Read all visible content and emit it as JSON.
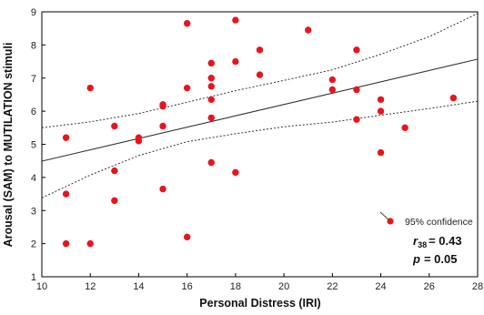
{
  "chart_data": {
    "type": "scatter",
    "title": "",
    "xlabel": "Personal Distress (IRI)",
    "ylabel": "Arousal (SAM) to MUTILATION stimuli",
    "xlim": [
      10,
      28
    ],
    "ylim": [
      1,
      9
    ],
    "xticks": [
      "10",
      "12",
      "14",
      "16",
      "18",
      "20",
      "22",
      "24",
      "26",
      "28"
    ],
    "yticks": [
      "1",
      "2",
      "3",
      "4",
      "5",
      "6",
      "7",
      "8",
      "9"
    ],
    "grid": false,
    "legend": {
      "label": "95% confidence",
      "placement": "bottom-right"
    },
    "stats": {
      "r_symbol": "r",
      "r_subscript": "38",
      "r_value": "= 0.43",
      "p_symbol": "p",
      "p_value": "=  0.05"
    },
    "colors": {
      "points": "#e8141e",
      "fit_line": "#333333",
      "confidence_band": "#333333"
    },
    "regression": {
      "intercept": 2.78,
      "slope": 0.1711
    },
    "confidence_band": {
      "upper": [
        [
          10,
          5.5
        ],
        [
          12,
          5.68
        ],
        [
          14,
          5.93
        ],
        [
          16,
          6.27
        ],
        [
          18,
          6.62
        ],
        [
          20,
          6.93
        ],
        [
          22,
          7.25
        ],
        [
          24,
          7.72
        ],
        [
          26,
          8.25
        ],
        [
          28,
          8.95
        ]
      ],
      "lower": [
        [
          10,
          3.38
        ],
        [
          12,
          4.07
        ],
        [
          14,
          4.66
        ],
        [
          16,
          5.08
        ],
        [
          18,
          5.32
        ],
        [
          20,
          5.53
        ],
        [
          22,
          5.67
        ],
        [
          24,
          5.88
        ],
        [
          26,
          6.08
        ],
        [
          28,
          6.3
        ]
      ]
    },
    "points": [
      {
        "x": 11,
        "y": 5.2
      },
      {
        "x": 11,
        "y": 3.5
      },
      {
        "x": 11,
        "y": 2.0
      },
      {
        "x": 12,
        "y": 6.7
      },
      {
        "x": 12,
        "y": 2.0
      },
      {
        "x": 13,
        "y": 5.55
      },
      {
        "x": 13,
        "y": 4.2
      },
      {
        "x": 13,
        "y": 3.3
      },
      {
        "x": 14,
        "y": 5.2
      },
      {
        "x": 14,
        "y": 5.1
      },
      {
        "x": 15,
        "y": 6.2
      },
      {
        "x": 15,
        "y": 6.15
      },
      {
        "x": 15,
        "y": 5.55
      },
      {
        "x": 15,
        "y": 3.65
      },
      {
        "x": 16,
        "y": 8.65
      },
      {
        "x": 16,
        "y": 6.7
      },
      {
        "x": 16,
        "y": 2.2
      },
      {
        "x": 17,
        "y": 7.45
      },
      {
        "x": 17,
        "y": 7.0
      },
      {
        "x": 17,
        "y": 6.75
      },
      {
        "x": 17,
        "y": 6.35
      },
      {
        "x": 17,
        "y": 5.8
      },
      {
        "x": 17,
        "y": 4.45
      },
      {
        "x": 18,
        "y": 8.75
      },
      {
        "x": 18,
        "y": 7.5
      },
      {
        "x": 18,
        "y": 4.15
      },
      {
        "x": 19,
        "y": 7.85
      },
      {
        "x": 19,
        "y": 7.1
      },
      {
        "x": 21,
        "y": 8.45
      },
      {
        "x": 22,
        "y": 6.95
      },
      {
        "x": 22,
        "y": 6.65
      },
      {
        "x": 23,
        "y": 7.85
      },
      {
        "x": 23,
        "y": 6.65
      },
      {
        "x": 23,
        "y": 5.75
      },
      {
        "x": 24,
        "y": 6.35
      },
      {
        "x": 24,
        "y": 6.0
      },
      {
        "x": 24,
        "y": 4.75
      },
      {
        "x": 25,
        "y": 5.5
      },
      {
        "x": 27,
        "y": 6.4
      }
    ]
  }
}
